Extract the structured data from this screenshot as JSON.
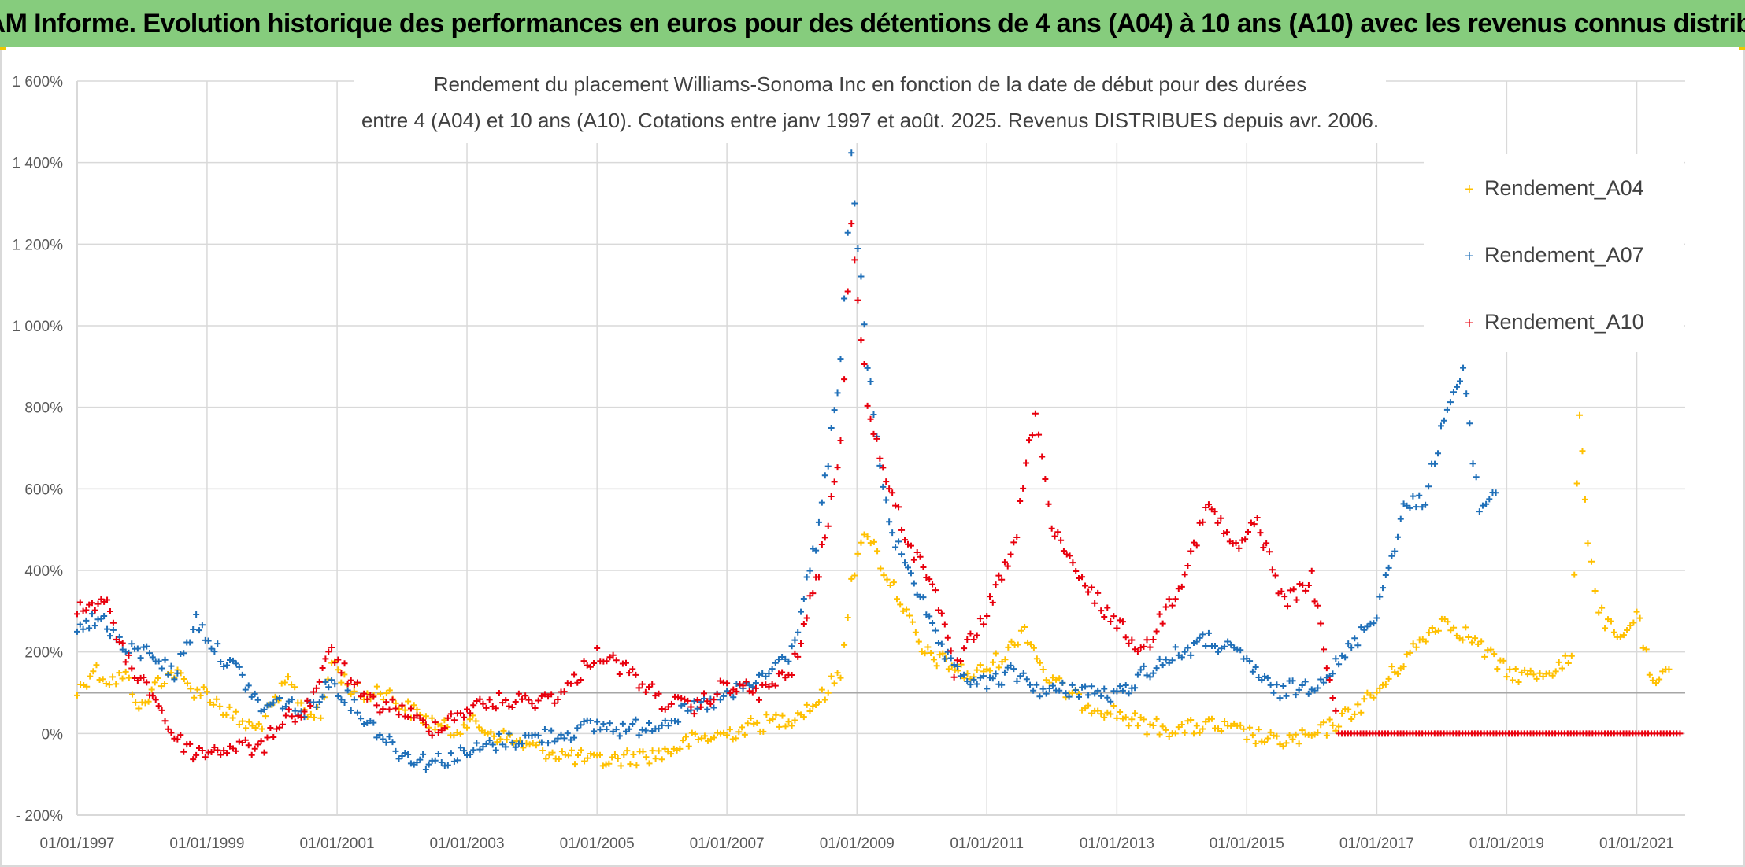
{
  "header": {
    "title": "ADAM Informe. Evolution historique des performances en euros pour des détentions de 4 ans (A04) à 10 ans (A10) avec les revenus connus distribués"
  },
  "colors": {
    "banner": "#86cc7d",
    "A04": "#ffc000",
    "A07": "#1f6fb8",
    "A10": "#e8000d",
    "grid": "#d9d9d9",
    "ref_line": "#a6a6a6"
  },
  "chart_data": {
    "type": "scatter",
    "title_lines": [
      "Rendement du placement Williams-Sonoma Inc en fonction de la date de début pour des durées",
      "entre 4 (A04) et 10 ans (A10). Cotations entre janv 1997 et août. 2025. Revenus DISTRIBUES depuis avr. 2006."
    ],
    "xlabel": "",
    "ylabel": "",
    "x_range": [
      "1997-01-01",
      "2021-09-30"
    ],
    "x_ticks": [
      "01/01/1997",
      "01/01/1999",
      "01/01/2001",
      "01/01/2003",
      "01/01/2005",
      "01/01/2007",
      "01/01/2009",
      "01/01/2011",
      "01/01/2013",
      "01/01/2015",
      "01/01/2017",
      "01/01/2019",
      "01/01/2021"
    ],
    "ylim": [
      -200,
      1600
    ],
    "y_ticks": [
      -200,
      0,
      200,
      400,
      600,
      800,
      1000,
      1200,
      1400,
      1600
    ],
    "y_tick_labels": [
      "- 200%",
      "0%",
      "200%",
      "400%",
      "600%",
      "800%",
      "1 000%",
      "1 200%",
      "1 400%",
      "1 600%"
    ],
    "reference_line_y": 100,
    "grid": true,
    "legend_position": "top-right",
    "marker": "+",
    "series": [
      {
        "name": "Rendement_A04",
        "points": [
          [
            "1997-01-01",
            100
          ],
          [
            "1997-04-01",
            160
          ],
          [
            "1997-07-01",
            130
          ],
          [
            "1997-10-01",
            140
          ],
          [
            "1998-01-01",
            60
          ],
          [
            "1998-04-01",
            130
          ],
          [
            "1998-07-01",
            150
          ],
          [
            "1998-10-01",
            110
          ],
          [
            "1999-01-01",
            100
          ],
          [
            "1999-04-01",
            60
          ],
          [
            "1999-07-01",
            30
          ],
          [
            "1999-10-01",
            10
          ],
          [
            "2000-01-01",
            60
          ],
          [
            "2000-04-01",
            130
          ],
          [
            "2000-07-01",
            60
          ],
          [
            "2000-10-01",
            40
          ],
          [
            "2000-12-01",
            180
          ],
          [
            "2001-03-01",
            120
          ],
          [
            "2001-06-01",
            90
          ],
          [
            "2001-09-01",
            110
          ],
          [
            "2002-01-01",
            70
          ],
          [
            "2002-06-01",
            30
          ],
          [
            "2002-10-01",
            5
          ],
          [
            "2003-01-01",
            30
          ],
          [
            "2003-06-01",
            0
          ],
          [
            "2003-12-01",
            -30
          ],
          [
            "2004-06-01",
            -50
          ],
          [
            "2005-01-01",
            -70
          ],
          [
            "2005-06-01",
            -60
          ],
          [
            "2006-01-01",
            -50
          ],
          [
            "2006-06-01",
            -20
          ],
          [
            "2007-01-01",
            0
          ],
          [
            "2007-06-01",
            20
          ],
          [
            "2008-01-01",
            40
          ],
          [
            "2008-06-01",
            80
          ],
          [
            "2008-10-01",
            150
          ],
          [
            "2008-12-01",
            380
          ],
          [
            "2009-03-01",
            500
          ],
          [
            "2009-06-01",
            400
          ],
          [
            "2009-09-01",
            330
          ],
          [
            "2010-01-01",
            200
          ],
          [
            "2010-06-01",
            170
          ],
          [
            "2010-10-01",
            140
          ],
          [
            "2011-01-01",
            160
          ],
          [
            "2011-05-01",
            200
          ],
          [
            "2011-08-01",
            260
          ],
          [
            "2011-12-01",
            140
          ],
          [
            "2012-06-01",
            80
          ],
          [
            "2013-01-01",
            50
          ],
          [
            "2013-06-01",
            20
          ],
          [
            "2014-01-01",
            10
          ],
          [
            "2014-06-01",
            20
          ],
          [
            "2015-01-01",
            0
          ],
          [
            "2015-06-01",
            -20
          ],
          [
            "2016-01-01",
            -10
          ],
          [
            "2016-06-01",
            30
          ],
          [
            "2017-01-01",
            100
          ],
          [
            "2017-06-01",
            180
          ],
          [
            "2018-01-01",
            280
          ],
          [
            "2018-06-01",
            240
          ],
          [
            "2019-01-01",
            150
          ],
          [
            "2019-06-01",
            140
          ],
          [
            "2020-01-01",
            180
          ],
          [
            "2020-02-15",
            800
          ],
          [
            "2020-04-01",
            480
          ],
          [
            "2020-06-01",
            300
          ],
          [
            "2020-10-01",
            220
          ],
          [
            "2021-01-01",
            300
          ],
          [
            "2021-04-01",
            110
          ],
          [
            "2021-07-01",
            150
          ]
        ]
      },
      {
        "name": "Rendement_A07",
        "points": [
          [
            "1997-01-01",
            270
          ],
          [
            "1997-06-01",
            280
          ],
          [
            "1997-10-01",
            200
          ],
          [
            "1998-03-01",
            200
          ],
          [
            "1998-07-01",
            140
          ],
          [
            "1998-11-01",
            280
          ],
          [
            "1999-03-01",
            200
          ],
          [
            "1999-07-01",
            150
          ],
          [
            "1999-11-01",
            60
          ],
          [
            "2000-03-01",
            80
          ],
          [
            "2000-07-01",
            50
          ],
          [
            "2000-12-01",
            130
          ],
          [
            "2001-06-01",
            40
          ],
          [
            "2002-01-01",
            -50
          ],
          [
            "2002-06-01",
            -70
          ],
          [
            "2003-01-01",
            -50
          ],
          [
            "2003-07-01",
            -20
          ],
          [
            "2004-01-01",
            -10
          ],
          [
            "2004-07-01",
            0
          ],
          [
            "2005-01-01",
            20
          ],
          [
            "2005-07-01",
            10
          ],
          [
            "2006-01-01",
            30
          ],
          [
            "2006-07-01",
            60
          ],
          [
            "2007-01-01",
            90
          ],
          [
            "2007-07-01",
            130
          ],
          [
            "2008-01-01",
            200
          ],
          [
            "2008-06-01",
            500
          ],
          [
            "2008-10-01",
            900
          ],
          [
            "2008-12-01",
            1410
          ],
          [
            "2009-03-01",
            900
          ],
          [
            "2009-07-01",
            500
          ],
          [
            "2009-11-01",
            400
          ],
          [
            "2010-03-01",
            250
          ],
          [
            "2010-07-01",
            150
          ],
          [
            "2011-01-01",
            120
          ],
          [
            "2011-06-01",
            150
          ],
          [
            "2011-12-01",
            100
          ],
          [
            "2012-06-01",
            110
          ],
          [
            "2013-01-01",
            90
          ],
          [
            "2013-06-01",
            150
          ],
          [
            "2014-01-01",
            200
          ],
          [
            "2014-06-01",
            230
          ],
          [
            "2015-01-01",
            180
          ],
          [
            "2015-06-01",
            100
          ],
          [
            "2016-01-01",
            120
          ],
          [
            "2016-06-01",
            170
          ],
          [
            "2017-01-01",
            300
          ],
          [
            "2017-06-01",
            550
          ],
          [
            "2017-10-01",
            580
          ],
          [
            "2018-02-01",
            800
          ],
          [
            "2018-05-01",
            880
          ],
          [
            "2018-08-01",
            550
          ],
          [
            "2018-11-01",
            600
          ]
        ]
      },
      {
        "name": "Rendement_A10",
        "points": [
          [
            "1997-01-01",
            300
          ],
          [
            "1997-06-01",
            330
          ],
          [
            "1997-10-01",
            180
          ],
          [
            "1998-03-01",
            100
          ],
          [
            "1998-07-01",
            -10
          ],
          [
            "1998-11-01",
            -50
          ],
          [
            "1999-03-01",
            -40
          ],
          [
            "1999-07-01",
            -30
          ],
          [
            "1999-11-01",
            -40
          ],
          [
            "2000-03-01",
            40
          ],
          [
            "2000-07-01",
            50
          ],
          [
            "2000-12-01",
            200
          ],
          [
            "2001-06-01",
            80
          ],
          [
            "2002-01-01",
            60
          ],
          [
            "2002-06-01",
            10
          ],
          [
            "2003-01-01",
            60
          ],
          [
            "2003-07-01",
            80
          ],
          [
            "2004-01-01",
            80
          ],
          [
            "2004-07-01",
            100
          ],
          [
            "2005-01-01",
            200
          ],
          [
            "2005-07-01",
            150
          ],
          [
            "2006-01-01",
            80
          ],
          [
            "2006-07-01",
            60
          ],
          [
            "2007-01-01",
            120
          ],
          [
            "2007-07-01",
            100
          ],
          [
            "2008-01-01",
            150
          ],
          [
            "2008-06-01",
            400
          ],
          [
            "2008-10-01",
            700
          ],
          [
            "2008-12-01",
            1260
          ],
          [
            "2009-03-01",
            800
          ],
          [
            "2009-07-01",
            600
          ],
          [
            "2009-11-01",
            450
          ],
          [
            "2010-03-01",
            380
          ],
          [
            "2010-07-01",
            150
          ],
          [
            "2011-01-01",
            300
          ],
          [
            "2011-06-01",
            450
          ],
          [
            "2011-10-01",
            800
          ],
          [
            "2012-01-01",
            500
          ],
          [
            "2012-06-01",
            380
          ],
          [
            "2013-01-01",
            270
          ],
          [
            "2013-06-01",
            200
          ],
          [
            "2014-01-01",
            380
          ],
          [
            "2014-06-01",
            560
          ],
          [
            "2014-11-01",
            450
          ],
          [
            "2015-03-01",
            520
          ],
          [
            "2015-08-01",
            320
          ],
          [
            "2016-01-01",
            380
          ],
          [
            "2016-06-01",
            0
          ],
          [
            "2017-06-01",
            0
          ],
          [
            "2018-06-01",
            0
          ],
          [
            "2019-06-01",
            0
          ],
          [
            "2020-06-01",
            0
          ],
          [
            "2021-06-01",
            0
          ],
          [
            "2021-09-01",
            0
          ]
        ]
      }
    ]
  }
}
